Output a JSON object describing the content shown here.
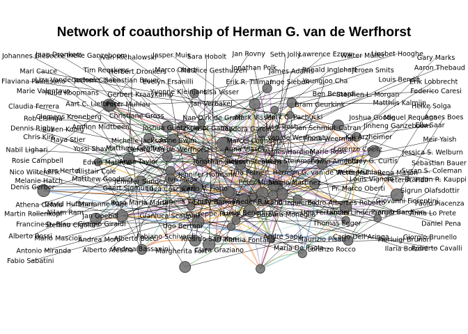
{
  "title": "Network of coauthorship of Herman G. van de Werfhorst",
  "colors": {
    "background": "#ffffff",
    "node_fill": "#6e6e6e",
    "node_stroke": "#333333",
    "label_line": "#000000",
    "edge_palette": [
      "#7fbf7f",
      "#d4a5e6",
      "#f2c14e",
      "#8fb3e0",
      "#e88c8c",
      "#9fd3c7",
      "#c9a0dc",
      "#f4a261"
    ]
  },
  "labels": [
    "Johannes Giesecke",
    "Jaap Dronkers",
    "Ineke Ganzeboom",
    "Ivan Michalowski",
    "Jasper Muis",
    "Sara Hobolt",
    "Jan Rovny",
    "Seth Jolly",
    "Lawrence Ezrow",
    "Walter Müller",
    "Liesbet Hooghe",
    "Gary Marks",
    "Mari Cauce",
    "Tim Reeskens",
    "Herbert Dronkers",
    "Marco Oberti",
    "Maurice Gesthuizen",
    "Jonathan Polk",
    "James Adams",
    "Ronald Inglehart",
    "Jeroen Smits",
    "Aaron Thebaud",
    "Flaviana Palmisano",
    "Liza Vandecasteele",
    "Jochen Clasen",
    "Sebastian Bauer",
    "Evelyn Ersanilli",
    "Erik R. Tillman",
    "Inge Sieben",
    "Youngjoo Cha",
    "Louis Bendit",
    "Erik Lobbrecht",
    "Marie Valentova",
    "Ruud Koopmans",
    "Gerbert Kraaykamp",
    "Yvonne Kleinjans",
    "Lisa Visser",
    "Ben Bernardi",
    "Stephen L. Morgan",
    "Federico Caresi",
    "Claudia Ferrera",
    "Aart C. Liefbroer",
    "Peter Muhlau",
    "Jan Verbakel",
    "Bram Geurkink",
    "Matthijs Kalmijn",
    "Heike Solga",
    "Rob Eisinga",
    "Clemens Kroneberg",
    "Christiane Gross",
    "Nan Dirk de Graaf",
    "Mark Visser",
    "Mark C. Pachucki",
    "Joshua Goode",
    "Miguel Requena",
    "Agnes Boes",
    "Dennis Rigby",
    "Ruben Konig",
    "Arnfinn Midtbøen",
    "Joshua Guetzkow",
    "Limor Gabay",
    "Teodora Garcia",
    "Lisa Trost",
    "Ian Schmidt-Catran",
    "Jinheng Ganzeboom",
    "Ellu Saar",
    "Chris Kirk",
    "Haya Stier",
    "Michelle Jackson",
    "Anne Swim",
    "Marcel Coenders",
    "Jan van de Werfhorst",
    "Frank Weerman",
    "Kai Arzheimer",
    "Meir Yaish",
    "Nabil Lighari",
    "Yossi Shavit",
    "Matthew Geoffrey",
    "Gerard van de Werfhorst",
    "Anna Vlasova",
    "James Harding",
    "Marie Rose",
    "Lorenzo Coeliz",
    "Jessica S. Welburn",
    "Rosie Campbell",
    "Edwin Mathew",
    "Anna Taylor",
    "Jonathan Jackson",
    "Robert Stephens",
    "Susan Steinmann",
    "Edwin Amenta",
    "Jeffrey G. Curtis",
    "Sebastian Bauer",
    "Nico Wilterdink",
    "Lars Hertel",
    "Alistair Cole",
    "Jennifer Hofmann",
    "Tina Fetner",
    "Herman G. van de Werfhorst",
    "Peter Muhlau",
    "Rena Mason",
    "Susan S. Coleman",
    "Melanie Hatch",
    "Matthew Goodwin",
    "Jennifer Sunder",
    "Ivo Maas",
    "Peter Muhlau",
    "Sergio Martinez",
    "Louis Vignola",
    "Peter A. Hall",
    "Brandon R. Kauppi",
    "Denis Gerber",
    "Geert Sigmund",
    "Luca Coscarelli",
    "Carlo V. Fiorio",
    "Pr. Marco Oberti",
    "Sigrun Olafsdottir",
    "Athena Cefalu",
    "David Huffman",
    "Marianne Page",
    "Rosa Maria Martini",
    "Cornelia Wrzus",
    "Emily Barman",
    "Frieder R. Lang",
    "Mario Izquierdo",
    "Pedro Albert",
    "Les Roberto",
    "Giovanni Fiorentini",
    "Paolo Piacenza",
    "Martin Rollenkopf",
    "Nilam Ram",
    "Jan Goebel",
    "Gianluca Scappini",
    "Giuseppe Russo",
    "Lucio Benedictis",
    "Barbara Moneglia",
    "Ugo Ferrandini",
    "Ulman Lindenberger",
    "Pranab Bardhan",
    "Anna Lo Prete",
    "Francine D. Blau",
    "Stefano Cigolani",
    "Giorgio Giraldi",
    "Ugo Bertoni",
    "Thomas Egger",
    "Daniel Pena",
    "Alberto Rossi",
    "Mario Mascioli",
    "Andrea Moro",
    "Alberto Bucci",
    "Fabiano Schivardi",
    "Ricardo Sarrafan",
    "Mattia Fontana",
    "Andre Sapir",
    "Maurizio Pisati",
    "Carlo Dell'Aringa",
    "Pierluigi Brunori",
    "Giorgio Brunello",
    "Antonio Miranda",
    "Alberto Alesina",
    "Andrea Bassanini",
    "Margherita Fort",
    "Clara Graziano",
    "Maria De Paola",
    "Lorenzo Rocco",
    "Ilaria Bolzoni",
    "Roberto Cavalli",
    "Fabio Sabatini"
  ]
}
